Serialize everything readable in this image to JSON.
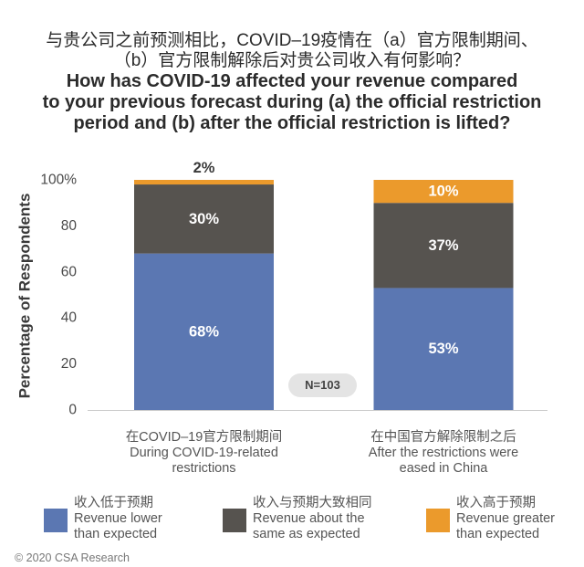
{
  "chart_data": {
    "type": "bar",
    "stacked": true,
    "title": {
      "zh_lines": [
        "与贵公司之前预测相比，COVID–19疫情在（a）官方限制期间、",
        "（b）官方限制解除后对贵公司收入有何影响？"
      ],
      "en_lines": [
        "How has COVID-19 affected your revenue compared",
        "to your previous forecast during (a) the official restriction",
        "period and (b) after the official restriction is lifted?"
      ]
    },
    "xlabel": "",
    "ylabel": "Percentage of Respondents",
    "ylim": [
      0,
      100
    ],
    "yticks": [
      0,
      20,
      40,
      60,
      80,
      100
    ],
    "ytick_labels": [
      "0",
      "20",
      "40",
      "60",
      "80",
      "100%"
    ],
    "grid": false,
    "categories": [
      "During COVID-19-related restrictions",
      "After the restrictions were eased in China"
    ],
    "categories_zh": [
      "在COVID–19官方限制期间",
      "在中国官方解除限制之后"
    ],
    "series": [
      {
        "name": "Revenue lower than expected",
        "name_zh": "收入低于预期",
        "values": [
          68,
          53
        ],
        "labels": [
          "68%",
          "53%"
        ],
        "color": "#5b77b2"
      },
      {
        "name": "Revenue about the same as expected",
        "name_zh": "收入与预期大致相同",
        "values": [
          30,
          37
        ],
        "labels": [
          "30%",
          "37%"
        ],
        "color": "#56534f"
      },
      {
        "name": "Revenue greater than expected",
        "name_zh": "收入高于预期",
        "values": [
          2,
          10
        ],
        "labels": [
          "2%",
          "10%"
        ],
        "color": "#eb9a2c"
      }
    ],
    "annotation": "N=103",
    "legend_position": "bottom"
  },
  "footer": {
    "copyright": "© 2020 CSA Research"
  }
}
